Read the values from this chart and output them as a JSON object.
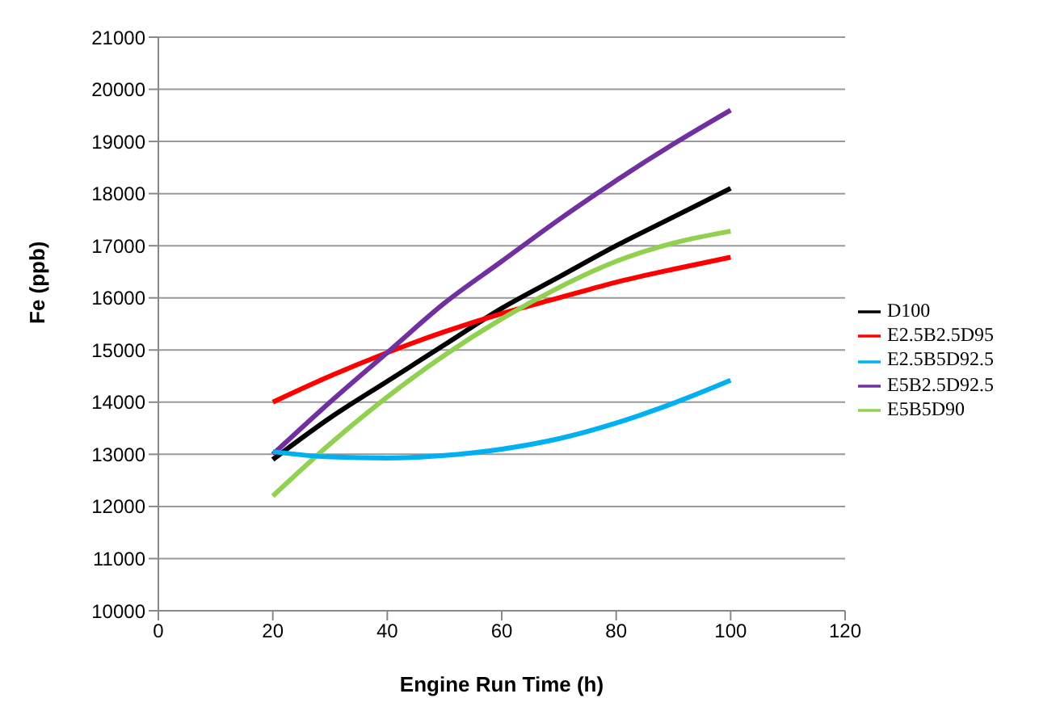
{
  "chart_data": {
    "type": "line",
    "xlabel": "Engine Run Time (h)",
    "ylabel": "Fe (ppb)",
    "x": [
      20,
      30,
      40,
      50,
      60,
      70,
      80,
      90,
      100
    ],
    "series": [
      {
        "name": "D100",
        "color": "#000000",
        "values": [
          12900,
          13700,
          14400,
          15100,
          15800,
          16400,
          17000,
          17550,
          18100
        ]
      },
      {
        "name": "E2.5B2.5D95",
        "color": "#ff0000",
        "values": [
          14000,
          14500,
          14950,
          15350,
          15700,
          16000,
          16300,
          16550,
          16780
        ]
      },
      {
        "name": "E5B5D90",
        "color": "#92d050",
        "values": [
          12200,
          13200,
          14100,
          14900,
          15600,
          16200,
          16700,
          17050,
          17280
        ]
      },
      {
        "name": "E5B2.5D92.5",
        "color": "#7030a0",
        "values": [
          13000,
          14000,
          14950,
          15900,
          16700,
          17500,
          18250,
          18950,
          19600
        ]
      },
      {
        "name": "E2.5B5D92.5",
        "color": "#00b0f0",
        "values": [
          13050,
          12950,
          12930,
          12980,
          13100,
          13300,
          13600,
          13980,
          14420
        ]
      }
    ],
    "xlim": [
      0,
      120
    ],
    "xticks": [
      0,
      20,
      40,
      60,
      80,
      100,
      120
    ],
    "ylim": [
      10000,
      21000
    ],
    "yticks": [
      10000,
      11000,
      12000,
      13000,
      14000,
      15000,
      16000,
      17000,
      18000,
      19000,
      20000,
      21000
    ],
    "grid": "y",
    "legend": "right",
    "marker": "none",
    "line_style": "solid"
  }
}
